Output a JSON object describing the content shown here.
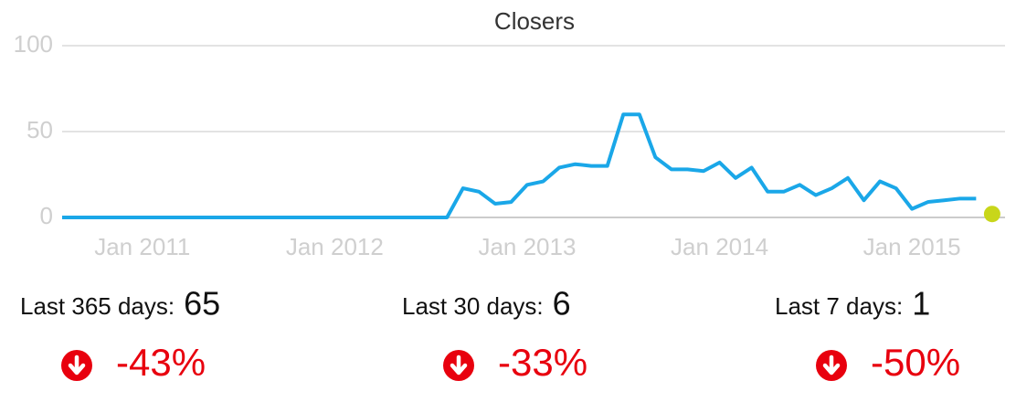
{
  "chart_data": {
    "type": "line",
    "title": "Closers",
    "x": [
      "2010-08",
      "2010-09",
      "2010-10",
      "2010-11",
      "2010-12",
      "2011-01",
      "2011-02",
      "2011-03",
      "2011-04",
      "2011-05",
      "2011-06",
      "2011-07",
      "2011-08",
      "2011-09",
      "2011-10",
      "2011-11",
      "2011-12",
      "2012-01",
      "2012-02",
      "2012-03",
      "2012-04",
      "2012-05",
      "2012-06",
      "2012-07",
      "2012-08",
      "2012-09",
      "2012-10",
      "2012-11",
      "2012-12",
      "2013-01",
      "2013-02",
      "2013-03",
      "2013-04",
      "2013-05",
      "2013-06",
      "2013-07",
      "2013-08",
      "2013-09",
      "2013-10",
      "2013-11",
      "2013-12",
      "2014-01",
      "2014-02",
      "2014-03",
      "2014-04",
      "2014-05",
      "2014-06",
      "2014-07",
      "2014-08",
      "2014-09",
      "2014-10",
      "2014-11",
      "2014-12",
      "2015-01",
      "2015-02",
      "2015-03",
      "2015-04",
      "2015-05",
      "2015-06"
    ],
    "series": [
      {
        "color": "#1aa7e8",
        "values": [
          0,
          0,
          0,
          0,
          0,
          0,
          0,
          0,
          0,
          0,
          0,
          0,
          0,
          0,
          0,
          0,
          0,
          0,
          0,
          0,
          0,
          0,
          0,
          0,
          0,
          17,
          15,
          8,
          9,
          19,
          21,
          29,
          31,
          30,
          30,
          60,
          60,
          35,
          28,
          28,
          27,
          32,
          23,
          29,
          15,
          15,
          19,
          13,
          17,
          23,
          10,
          21,
          17,
          5,
          9,
          10,
          11,
          11,
          null
        ]
      },
      {
        "color": "#c8d61a",
        "values": [
          null,
          null,
          null,
          null,
          null,
          null,
          null,
          null,
          null,
          null,
          null,
          null,
          null,
          null,
          null,
          null,
          null,
          null,
          null,
          null,
          null,
          null,
          null,
          null,
          null,
          null,
          null,
          null,
          null,
          null,
          null,
          null,
          null,
          null,
          null,
          null,
          null,
          null,
          null,
          null,
          null,
          null,
          null,
          null,
          null,
          null,
          null,
          null,
          null,
          null,
          null,
          null,
          null,
          null,
          null,
          null,
          null,
          null,
          2
        ]
      }
    ],
    "ylim": [
      0,
      100
    ],
    "yticks": [
      0,
      50,
      100
    ],
    "grid": true,
    "xticks": [
      {
        "value": "2011-01",
        "label": "Jan 2011"
      },
      {
        "value": "2012-01",
        "label": "Jan 2012"
      },
      {
        "value": "2013-01",
        "label": "Jan 2013"
      },
      {
        "value": "2014-01",
        "label": "Jan 2014"
      },
      {
        "value": "2015-01",
        "label": "Jan 2015"
      }
    ]
  },
  "stats": [
    {
      "label": "Last 365 days:",
      "value": 65,
      "change": -43,
      "change_label": "-43%"
    },
    {
      "label": "Last 30 days:",
      "value": 6,
      "change": -33,
      "change_label": "-33%"
    },
    {
      "label": "Last 7 days:",
      "value": 1,
      "change": -50,
      "change_label": "-50%"
    }
  ]
}
